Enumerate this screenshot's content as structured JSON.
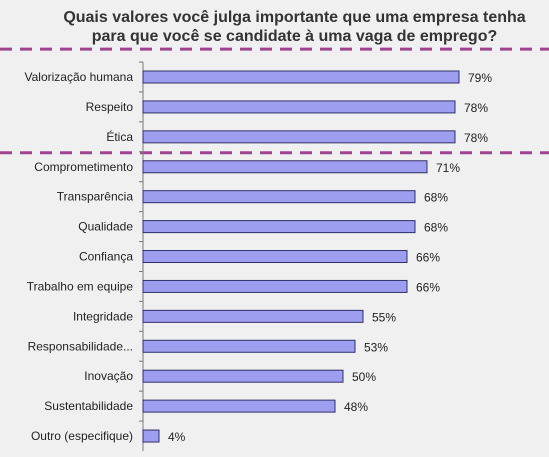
{
  "chart_data": {
    "type": "bar",
    "orientation": "horizontal",
    "title_lines": [
      "Quais valores você julga importante que uma empresa tenha",
      "para que você se candidate à uma vaga de emprego?"
    ],
    "categories": [
      "Valorização humana",
      "Respeito",
      "Ética",
      "Comprometimento",
      "Transparência",
      "Qualidade",
      "Confiança",
      "Trabalho em equipe",
      "Integridade",
      "Responsabilidade...",
      "Inovação",
      "Sustentabilidade",
      "Outro (especifique)"
    ],
    "values": [
      79,
      78,
      78,
      71,
      68,
      68,
      66,
      66,
      55,
      53,
      50,
      48,
      4
    ],
    "value_labels": [
      "79%",
      "78%",
      "78%",
      "71%",
      "68%",
      "68%",
      "66%",
      "66%",
      "55%",
      "53%",
      "50%",
      "48%",
      "4%"
    ],
    "xlim": [
      0,
      100
    ],
    "grid": false,
    "legend": "none",
    "highlight_group_size": 3
  },
  "colors": {
    "bar_fill": "#9e9ef0",
    "bar_stroke": "#30306a",
    "axis": "#777777",
    "divider": "#a0448f",
    "background": "#f0f0f0",
    "text": "#222222"
  }
}
